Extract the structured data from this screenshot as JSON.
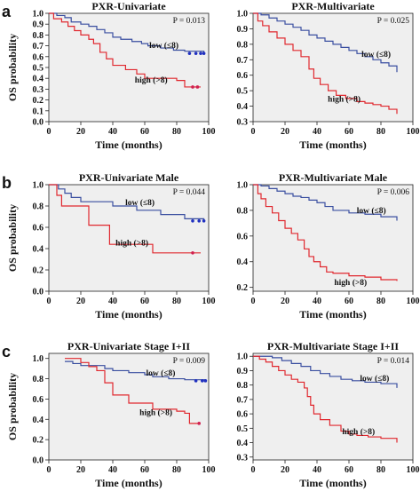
{
  "panel_letters": [
    "a",
    "b",
    "c"
  ],
  "colors": {
    "low": "#3a4fa0",
    "high": "#e0282f",
    "censor_low": "#2030c0",
    "censor_high": "#d02050"
  },
  "chart_data": [
    {
      "id": "a-left",
      "type": "line",
      "title": "PXR-Univariate",
      "xlabel": "Time (months)",
      "ylabel": "OS probability",
      "pvalue": "P = 0.013",
      "xlim": [
        0,
        100
      ],
      "ylim": [
        0.0,
        1.0
      ],
      "xticks": [
        0,
        20,
        40,
        60,
        80,
        100
      ],
      "yticks": [
        0.0,
        0.1,
        0.2,
        0.3,
        0.4,
        0.5,
        0.6,
        0.7,
        0.8,
        0.9,
        1.0
      ],
      "ytick_labels": [
        "0.0",
        "0.1",
        "0.2",
        "0.3",
        "0.4",
        "0.5",
        "0.6",
        "0.7",
        "0.8",
        "0.9",
        "1.0"
      ],
      "series": [
        {
          "key": "low",
          "label": "low (≤8)",
          "label_at": [
            72,
            0.68
          ],
          "points": [
            [
              0,
              1.0
            ],
            [
              5,
              0.98
            ],
            [
              10,
              0.96
            ],
            [
              14,
              0.92
            ],
            [
              20,
              0.9
            ],
            [
              25,
              0.88
            ],
            [
              30,
              0.85
            ],
            [
              35,
              0.82
            ],
            [
              40,
              0.78
            ],
            [
              45,
              0.76
            ],
            [
              52,
              0.74
            ],
            [
              58,
              0.72
            ],
            [
              62,
              0.7
            ],
            [
              70,
              0.68
            ],
            [
              78,
              0.66
            ],
            [
              85,
              0.65
            ],
            [
              97,
              0.63
            ]
          ],
          "censor": [
            [
              88,
              0.63
            ],
            [
              92,
              0.63
            ],
            [
              95,
              0.63
            ],
            [
              97,
              0.63
            ]
          ]
        },
        {
          "key": "high",
          "label": "high (>8)",
          "label_at": [
            64,
            0.36
          ],
          "points": [
            [
              0,
              1.0
            ],
            [
              3,
              0.95
            ],
            [
              8,
              0.92
            ],
            [
              12,
              0.88
            ],
            [
              16,
              0.84
            ],
            [
              20,
              0.8
            ],
            [
              25,
              0.76
            ],
            [
              28,
              0.72
            ],
            [
              32,
              0.64
            ],
            [
              36,
              0.58
            ],
            [
              40,
              0.52
            ],
            [
              48,
              0.48
            ],
            [
              55,
              0.44
            ],
            [
              60,
              0.4
            ],
            [
              80,
              0.38
            ],
            [
              85,
              0.32
            ],
            [
              95,
              0.32
            ]
          ],
          "censor": [
            [
              90,
              0.32
            ],
            [
              93,
              0.32
            ]
          ]
        }
      ]
    },
    {
      "id": "a-right",
      "type": "line",
      "title": "PXR-Multivariate",
      "xlabel": "Time (months)",
      "ylabel": "",
      "pvalue": "P = 0.025",
      "xlim": [
        0,
        100
      ],
      "ylim": [
        0.3,
        1.0
      ],
      "xticks": [
        0,
        20,
        40,
        60,
        80,
        100
      ],
      "yticks": [
        0.3,
        0.4,
        0.5,
        0.6,
        0.7,
        0.8,
        0.9,
        1.0
      ],
      "ytick_labels": [
        "0.3",
        "0.4",
        "0.5",
        "0.6",
        "0.7",
        "0.8",
        "0.9",
        "1.0"
      ],
      "series": [
        {
          "key": "low",
          "label": "low (≤8)",
          "label_at": [
            77,
            0.72
          ],
          "points": [
            [
              0,
              1.0
            ],
            [
              5,
              0.99
            ],
            [
              10,
              0.97
            ],
            [
              15,
              0.95
            ],
            [
              20,
              0.93
            ],
            [
              25,
              0.91
            ],
            [
              30,
              0.89
            ],
            [
              35,
              0.86
            ],
            [
              40,
              0.84
            ],
            [
              45,
              0.82
            ],
            [
              50,
              0.8
            ],
            [
              55,
              0.78
            ],
            [
              60,
              0.76
            ],
            [
              65,
              0.74
            ],
            [
              70,
              0.72
            ],
            [
              75,
              0.7
            ],
            [
              80,
              0.68
            ],
            [
              85,
              0.66
            ],
            [
              90,
              0.62
            ]
          ],
          "censor": []
        },
        {
          "key": "high",
          "label": "high (>8)",
          "label_at": [
            57,
            0.43
          ],
          "points": [
            [
              0,
              1.0
            ],
            [
              3,
              0.95
            ],
            [
              6,
              0.92
            ],
            [
              10,
              0.88
            ],
            [
              15,
              0.84
            ],
            [
              20,
              0.8
            ],
            [
              25,
              0.76
            ],
            [
              30,
              0.72
            ],
            [
              35,
              0.64
            ],
            [
              38,
              0.58
            ],
            [
              42,
              0.54
            ],
            [
              47,
              0.5
            ],
            [
              52,
              0.47
            ],
            [
              58,
              0.45
            ],
            [
              65,
              0.43
            ],
            [
              70,
              0.42
            ],
            [
              75,
              0.41
            ],
            [
              80,
              0.4
            ],
            [
              85,
              0.38
            ],
            [
              90,
              0.35
            ]
          ],
          "censor": []
        }
      ]
    },
    {
      "id": "b-left",
      "type": "line",
      "title": "PXR-Univariate Male",
      "xlabel": "Time (months)",
      "ylabel": "OS probability",
      "pvalue": "P = 0.044",
      "xlim": [
        0,
        100
      ],
      "ylim": [
        0.0,
        1.0
      ],
      "xticks": [
        0,
        20,
        40,
        60,
        80,
        100
      ],
      "yticks": [
        0.0,
        0.2,
        0.4,
        0.6,
        0.8,
        1.0
      ],
      "ytick_labels": [
        "0.0",
        "0.2",
        "0.4",
        "0.6",
        "0.8",
        "1.0"
      ],
      "series": [
        {
          "key": "low",
          "label": "low (≤8)",
          "label_at": [
            57,
            0.81
          ],
          "points": [
            [
              0,
              1.0
            ],
            [
              6,
              0.96
            ],
            [
              10,
              0.92
            ],
            [
              14,
              0.88
            ],
            [
              20,
              0.84
            ],
            [
              30,
              0.84
            ],
            [
              40,
              0.8
            ],
            [
              55,
              0.76
            ],
            [
              70,
              0.72
            ],
            [
              85,
              0.68
            ],
            [
              97,
              0.66
            ]
          ],
          "censor": [
            [
              90,
              0.66
            ],
            [
              94,
              0.66
            ],
            [
              97,
              0.66
            ]
          ]
        },
        {
          "key": "high",
          "label": "high (>8)",
          "label_at": [
            52,
            0.43
          ],
          "points": [
            [
              0,
              1.0
            ],
            [
              5,
              0.9
            ],
            [
              8,
              0.8
            ],
            [
              22,
              0.8
            ],
            [
              25,
              0.62
            ],
            [
              35,
              0.62
            ],
            [
              38,
              0.44
            ],
            [
              60,
              0.44
            ],
            [
              65,
              0.36
            ],
            [
              95,
              0.36
            ]
          ],
          "censor": [
            [
              90,
              0.36
            ]
          ]
        }
      ]
    },
    {
      "id": "b-right",
      "type": "line",
      "title": "PXR-Multivariate Male",
      "xlabel": "Time (months)",
      "ylabel": "",
      "pvalue": "P = 0.006",
      "xlim": [
        0,
        100
      ],
      "ylim": [
        0.17,
        1.0
      ],
      "xticks": [
        0,
        20,
        40,
        60,
        80,
        100
      ],
      "yticks": [
        0.2,
        0.4,
        0.6,
        0.8,
        1.0
      ],
      "ytick_labels": [
        "0.2",
        "0.4",
        "0.6",
        "0.8",
        "1.0"
      ],
      "series": [
        {
          "key": "low",
          "label": "low (≤8)",
          "label_at": [
            74,
            0.78
          ],
          "points": [
            [
              0,
              1.0
            ],
            [
              5,
              0.99
            ],
            [
              10,
              0.97
            ],
            [
              15,
              0.95
            ],
            [
              20,
              0.93
            ],
            [
              25,
              0.91
            ],
            [
              30,
              0.9
            ],
            [
              35,
              0.88
            ],
            [
              40,
              0.86
            ],
            [
              45,
              0.83
            ],
            [
              50,
              0.8
            ],
            [
              60,
              0.78
            ],
            [
              70,
              0.77
            ],
            [
              80,
              0.75
            ],
            [
              90,
              0.72
            ]
          ],
          "censor": []
        },
        {
          "key": "high",
          "label": "high (>8)",
          "label_at": [
            61,
            0.22
          ],
          "points": [
            [
              0,
              1.0
            ],
            [
              3,
              0.93
            ],
            [
              5,
              0.89
            ],
            [
              8,
              0.83
            ],
            [
              12,
              0.78
            ],
            [
              16,
              0.72
            ],
            [
              20,
              0.66
            ],
            [
              24,
              0.62
            ],
            [
              28,
              0.57
            ],
            [
              32,
              0.5
            ],
            [
              35,
              0.44
            ],
            [
              38,
              0.4
            ],
            [
              42,
              0.36
            ],
            [
              46,
              0.32
            ],
            [
              50,
              0.31
            ],
            [
              60,
              0.29
            ],
            [
              70,
              0.28
            ],
            [
              80,
              0.26
            ],
            [
              90,
              0.25
            ]
          ],
          "censor": []
        }
      ]
    },
    {
      "id": "c-left",
      "type": "line",
      "title": "PXR-Univariate Stage I+II",
      "xlabel": "Time (months)",
      "ylabel": "OS probability",
      "pvalue": "P = 0.009",
      "xlim": [
        0,
        100
      ],
      "ylim": [
        0.0,
        1.05
      ],
      "xticks": [
        0,
        20,
        40,
        60,
        80,
        100
      ],
      "yticks": [
        0.0,
        0.2,
        0.4,
        0.6,
        0.8,
        1.0
      ],
      "ytick_labels": [
        "0.0",
        "0.2",
        "0.4",
        "0.6",
        "0.8",
        "1.0"
      ],
      "series": [
        {
          "key": "low",
          "label": "low (≤8)",
          "label_at": [
            70,
            0.83
          ],
          "points": [
            [
              10,
              0.97
            ],
            [
              15,
              0.95
            ],
            [
              20,
              0.93
            ],
            [
              30,
              0.93
            ],
            [
              35,
              0.9
            ],
            [
              40,
              0.88
            ],
            [
              50,
              0.86
            ],
            [
              60,
              0.84
            ],
            [
              65,
              0.82
            ],
            [
              75,
              0.8
            ],
            [
              85,
              0.79
            ],
            [
              98,
              0.78
            ]
          ],
          "censor": [
            [
              92,
              0.78
            ],
            [
              96,
              0.78
            ],
            [
              98,
              0.78
            ]
          ]
        },
        {
          "key": "high",
          "label": "high (>8)",
          "label_at": [
            67,
            0.44
          ],
          "points": [
            [
              10,
              1.0
            ],
            [
              20,
              0.96
            ],
            [
              25,
              0.92
            ],
            [
              30,
              0.88
            ],
            [
              35,
              0.76
            ],
            [
              40,
              0.64
            ],
            [
              50,
              0.56
            ],
            [
              65,
              0.5
            ],
            [
              80,
              0.48
            ],
            [
              85,
              0.46
            ],
            [
              88,
              0.36
            ],
            [
              94,
              0.36
            ]
          ],
          "censor": [
            [
              94,
              0.36
            ]
          ]
        }
      ]
    },
    {
      "id": "c-right",
      "type": "line",
      "title": "PXR-Multivariate Stage I+II",
      "xlabel": "Time (months)",
      "ylabel": "",
      "pvalue": "P = 0.014",
      "xlim": [
        0,
        100
      ],
      "ylim": [
        0.28,
        1.02
      ],
      "xticks": [
        0,
        20,
        40,
        60,
        80,
        100
      ],
      "yticks": [
        0.3,
        0.4,
        0.5,
        0.6,
        0.7,
        0.8,
        0.9,
        1.0
      ],
      "ytick_labels": [
        "0.3",
        "0.4",
        "0.5",
        "0.6",
        "0.7",
        "0.8",
        "0.9",
        "1.0"
      ],
      "series": [
        {
          "key": "low",
          "label": "low (≤8)",
          "label_at": [
            76,
            0.83
          ],
          "points": [
            [
              0,
              1.0
            ],
            [
              8,
              1.0
            ],
            [
              12,
              0.99
            ],
            [
              18,
              0.97
            ],
            [
              24,
              0.95
            ],
            [
              30,
              0.93
            ],
            [
              36,
              0.9
            ],
            [
              42,
              0.88
            ],
            [
              48,
              0.86
            ],
            [
              55,
              0.84
            ],
            [
              62,
              0.83
            ],
            [
              70,
              0.82
            ],
            [
              80,
              0.81
            ],
            [
              90,
              0.78
            ]
          ],
          "censor": []
        },
        {
          "key": "high",
          "label": "high (>8)",
          "label_at": [
            66,
            0.46
          ],
          "points": [
            [
              0,
              1.0
            ],
            [
              4,
              0.98
            ],
            [
              8,
              0.96
            ],
            [
              12,
              0.93
            ],
            [
              16,
              0.9
            ],
            [
              20,
              0.87
            ],
            [
              24,
              0.84
            ],
            [
              28,
              0.82
            ],
            [
              32,
              0.78
            ],
            [
              34,
              0.72
            ],
            [
              36,
              0.66
            ],
            [
              38,
              0.6
            ],
            [
              42,
              0.56
            ],
            [
              48,
              0.52
            ],
            [
              55,
              0.48
            ],
            [
              60,
              0.46
            ],
            [
              65,
              0.45
            ],
            [
              72,
              0.44
            ],
            [
              80,
              0.43
            ],
            [
              88,
              0.43
            ],
            [
              90,
              0.4
            ]
          ],
          "censor": []
        }
      ]
    }
  ]
}
